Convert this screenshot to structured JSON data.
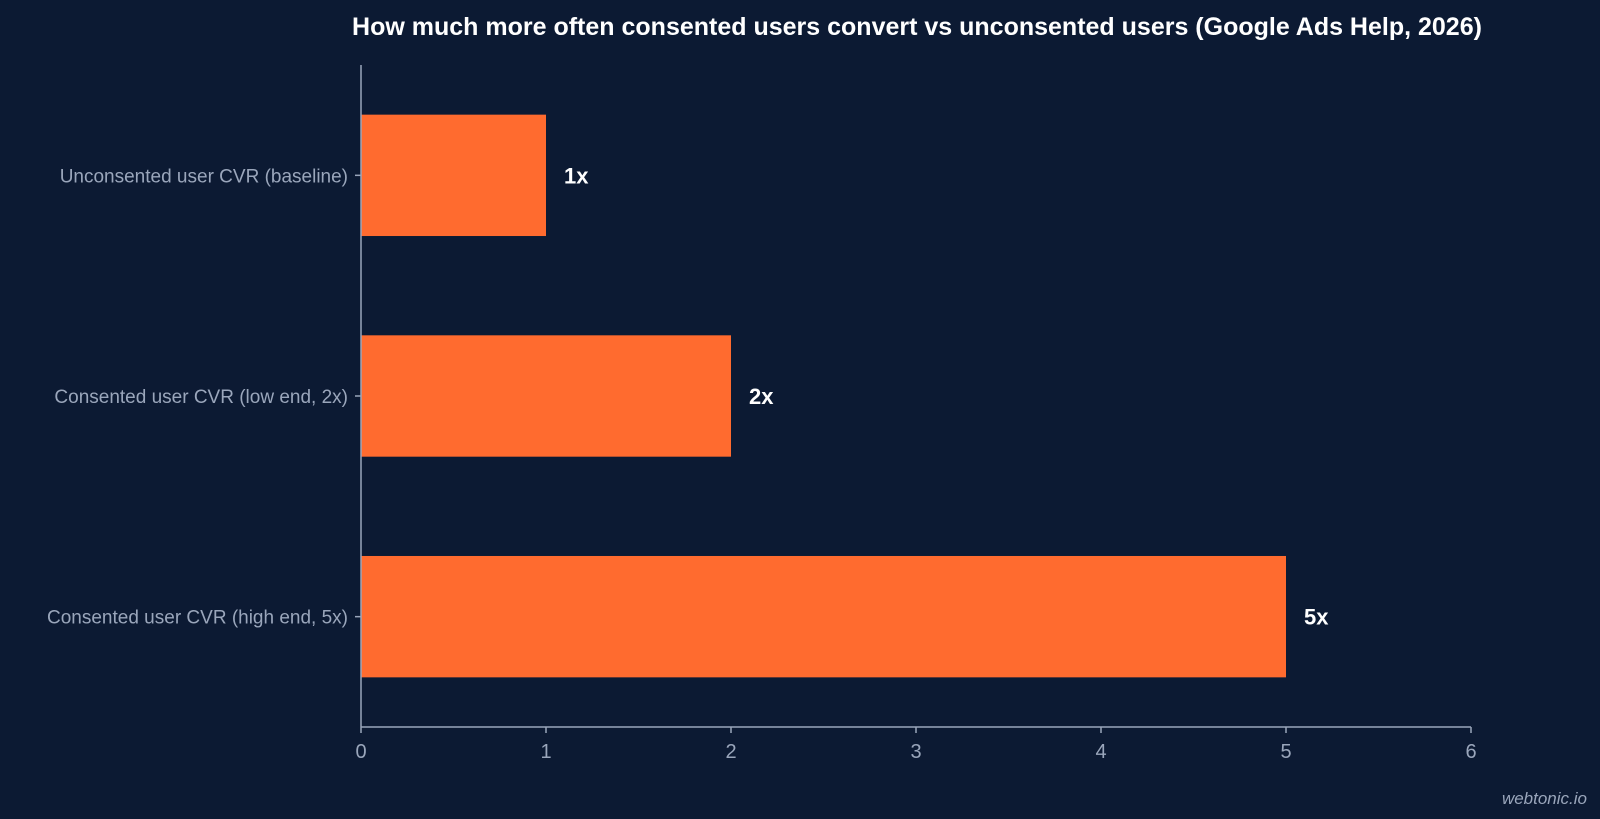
{
  "chart_data": {
    "type": "bar",
    "orientation": "horizontal",
    "title": "How much more often consented users convert vs unconsented users (Google Ads Help, 2026)",
    "categories": [
      "Unconsented user CVR (baseline)",
      "Consented user CVR (low end, 2x)",
      "Consented user CVR (high end, 5x)"
    ],
    "values": [
      1,
      2,
      5
    ],
    "data_labels": [
      "1x",
      "2x",
      "5x"
    ],
    "xlim": [
      0,
      6
    ],
    "xticks": [
      0,
      1,
      2,
      3,
      4,
      5,
      6
    ],
    "xlabel": "",
    "ylabel": "",
    "grid": false,
    "bar_color": "#ff6b2f",
    "background_color": "#0c1a33"
  },
  "watermark": "webtonic.io"
}
